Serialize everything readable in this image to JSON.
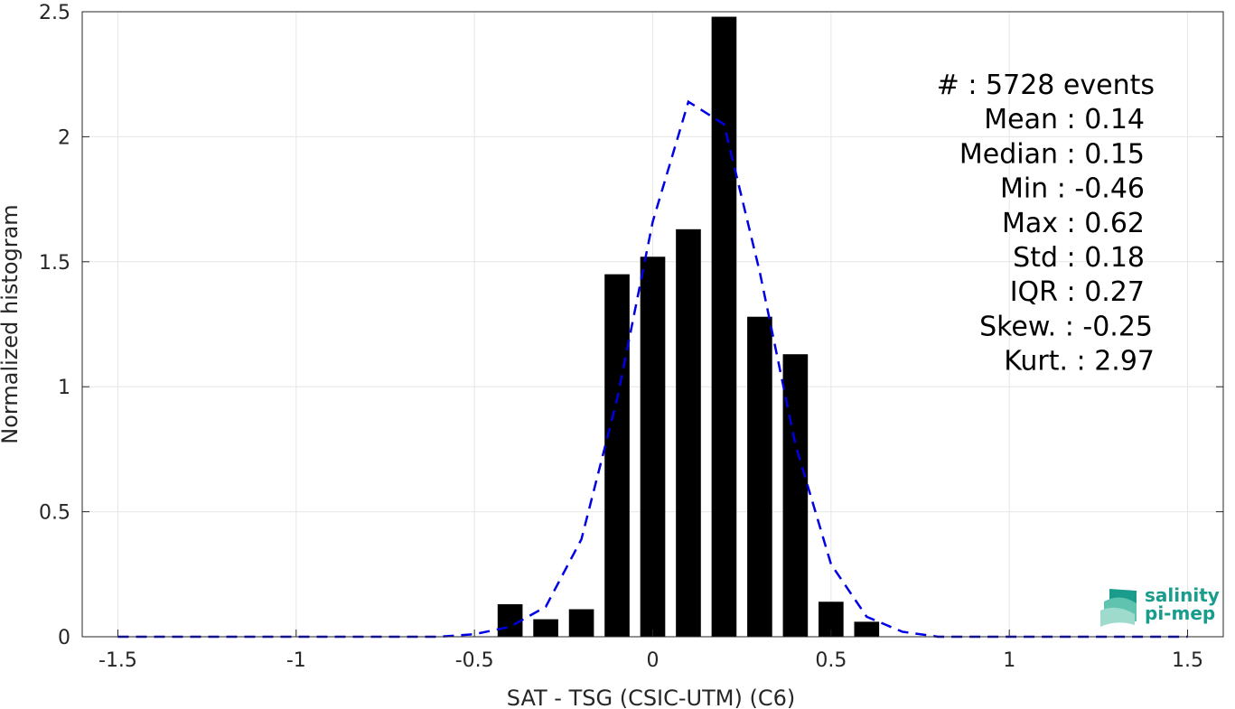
{
  "chart_data": {
    "type": "bar",
    "title": "",
    "xlabel": "SAT - TSG (CSIC-UTM) (C6)",
    "ylabel": "Normalized histogram",
    "xlim": [
      -1.6,
      1.6
    ],
    "ylim": [
      0,
      2.5
    ],
    "xticks": [
      -1.5,
      -1,
      -0.5,
      0,
      0.5,
      1,
      1.5
    ],
    "xtick_labels": [
      "-1.5",
      "-1",
      "-0.5",
      "0",
      "0.5",
      "1",
      "1.5"
    ],
    "yticks": [
      0,
      0.5,
      1,
      1.5,
      2,
      2.5
    ],
    "ytick_labels": [
      "0",
      "0.5",
      "1",
      "1.5",
      "2",
      "2.5"
    ],
    "grid": true,
    "bar_color": "#000000",
    "fit_line_color": "#0000e6",
    "bars": {
      "x": [
        -0.4,
        -0.3,
        -0.2,
        -0.1,
        0.0,
        0.1,
        0.2,
        0.3,
        0.4,
        0.5,
        0.6
      ],
      "values": [
        0.13,
        0.07,
        0.11,
        1.45,
        1.52,
        1.63,
        2.48,
        1.28,
        1.13,
        0.14,
        0.06
      ]
    },
    "fit_curve": {
      "x": [
        -1.5,
        -1.4,
        -1.3,
        -1.2,
        -1.1,
        -1.0,
        -0.9,
        -0.8,
        -0.7,
        -0.6,
        -0.5,
        -0.4,
        -0.3,
        -0.2,
        -0.1,
        0.0,
        0.1,
        0.2,
        0.3,
        0.4,
        0.5,
        0.6,
        0.7,
        0.8,
        0.9,
        1.0,
        1.1,
        1.2,
        1.3,
        1.4,
        1.5
      ],
      "y": [
        0,
        0,
        0,
        0,
        0,
        0,
        0,
        0,
        0,
        0,
        0.01,
        0.04,
        0.12,
        0.39,
        0.95,
        1.66,
        2.14,
        2.05,
        1.46,
        0.77,
        0.29,
        0.08,
        0.02,
        0,
        0,
        0,
        0,
        0,
        0,
        0,
        0
      ]
    },
    "stats": [
      {
        "label": "#  : 5728 events"
      },
      {
        "label": "Mean : 0.14"
      },
      {
        "label": "Median : 0.15"
      },
      {
        "label": "Min : -0.46"
      },
      {
        "label": "Max : 0.62"
      },
      {
        "label": "Std : 0.18"
      },
      {
        "label": "IQR : 0.27"
      },
      {
        "label": "Skew. : -0.25"
      },
      {
        "label": "Kurt. : 2.97"
      }
    ]
  },
  "logo": {
    "line1": "salinity",
    "line2": "pi-mep"
  }
}
